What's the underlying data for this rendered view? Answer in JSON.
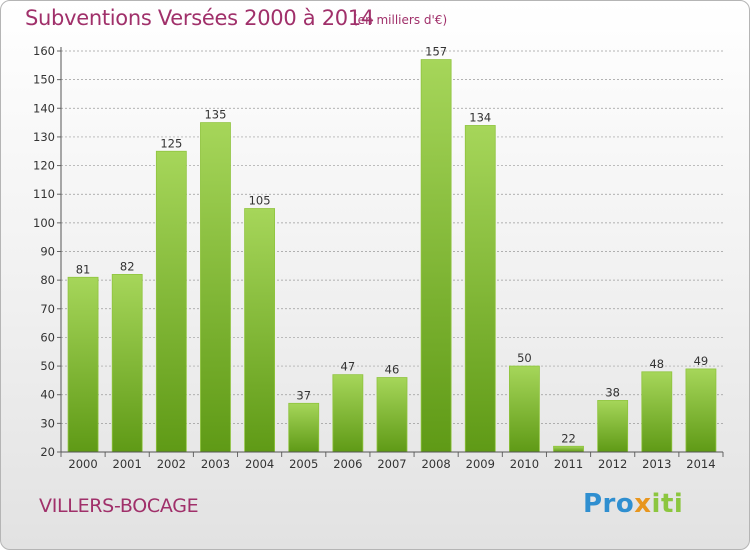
{
  "header": {
    "title": "Subventions Versées 2000 à 2014",
    "subtitle": "(en milliers d'€)"
  },
  "footer": {
    "place": "VILLERS-BOCAGE",
    "logo_parts": [
      "Pro",
      "x",
      "iti"
    ]
  },
  "colors": {
    "title": "#a0306a",
    "bar_top": "#a6d65a",
    "bar_bottom": "#5f9a16",
    "bar_stroke": "#8fc43e",
    "grid": "#9a9a9a"
  },
  "chart_data": {
    "type": "bar",
    "title": "Subventions Versées 2000 à 2014",
    "subtitle": "(en milliers d'€)",
    "xlabel": "",
    "ylabel": "",
    "categories": [
      "2000",
      "2001",
      "2002",
      "2003",
      "2004",
      "2005",
      "2006",
      "2007",
      "2008",
      "2009",
      "2010",
      "2011",
      "2012",
      "2013",
      "2014"
    ],
    "values": [
      81,
      82,
      125,
      135,
      105,
      37,
      47,
      46,
      157,
      134,
      50,
      22,
      38,
      48,
      49
    ],
    "ylim": [
      20,
      160
    ],
    "yticks": [
      20,
      30,
      40,
      50,
      60,
      70,
      80,
      90,
      100,
      110,
      120,
      130,
      140,
      150,
      160
    ],
    "grid": true,
    "legend": "none"
  }
}
